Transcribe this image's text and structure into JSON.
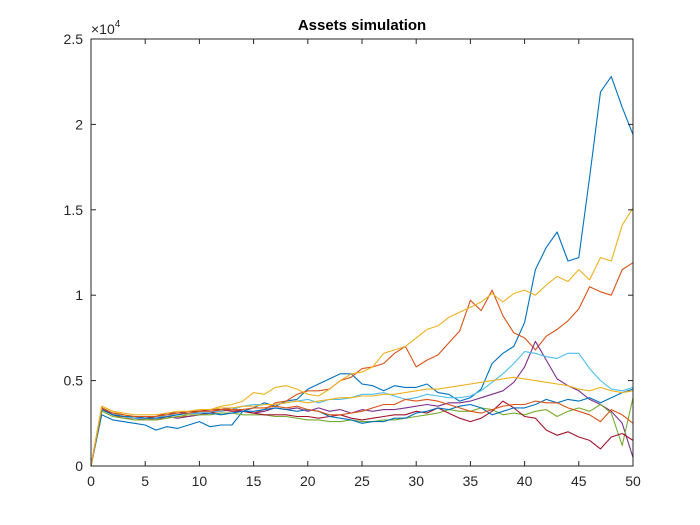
{
  "chart_data": {
    "type": "line",
    "title": "Assets simulation",
    "xlabel": "",
    "ylabel": "",
    "xlim": [
      0,
      50
    ],
    "ylim": [
      0,
      25000
    ],
    "y_multiplier_label": "×10",
    "y_multiplier_exponent": "4",
    "xticks": [
      0,
      5,
      10,
      15,
      20,
      25,
      30,
      35,
      40,
      45,
      50
    ],
    "xtick_labels": [
      "0",
      "5",
      "10",
      "15",
      "20",
      "25",
      "30",
      "35",
      "40",
      "45",
      "50"
    ],
    "yticks": [
      0,
      5000,
      10000,
      15000,
      20000,
      25000
    ],
    "ytick_labels": [
      "0",
      "0.5",
      "1",
      "1.5",
      "2",
      "2.5"
    ],
    "grid": false,
    "legend": "none",
    "x": [
      0,
      1,
      2,
      3,
      4,
      5,
      6,
      7,
      8,
      9,
      10,
      11,
      12,
      13,
      14,
      15,
      16,
      17,
      18,
      19,
      20,
      21,
      22,
      23,
      24,
      25,
      26,
      27,
      28,
      29,
      30,
      31,
      32,
      33,
      34,
      35,
      36,
      37,
      38,
      39,
      40,
      41,
      42,
      43,
      44,
      45,
      46,
      47,
      48,
      49,
      50
    ],
    "series": [
      {
        "color": "#0072BD",
        "values": [
          0,
          3000,
          2700,
          2600,
          2500,
          2400,
          2100,
          2300,
          2200,
          2400,
          2600,
          2300,
          2400,
          2400,
          3200,
          3400,
          3700,
          3500,
          3800,
          3900,
          4500,
          4800,
          5100,
          5400,
          5400,
          4800,
          4700,
          4400,
          4700,
          4600,
          4600,
          4800,
          4300,
          4200,
          3800,
          4000,
          4500,
          6000,
          6600,
          7000,
          8400,
          11500,
          12800,
          13700,
          12000,
          12200,
          16900,
          21900,
          22800,
          21000,
          19400
        ]
      },
      {
        "color": "#D95319",
        "values": [
          0,
          3400,
          3000,
          2800,
          2800,
          2800,
          2700,
          2800,
          2900,
          2900,
          3000,
          3100,
          3200,
          3300,
          3200,
          3100,
          3300,
          3700,
          3800,
          4200,
          4400,
          4400,
          4500,
          5000,
          5200,
          5700,
          5800,
          6000,
          6600,
          7000,
          5800,
          6200,
          6500,
          7200,
          7900,
          9700,
          9100,
          10300,
          8800,
          7800,
          7500,
          6800,
          7600,
          8000,
          8500,
          9200,
          10500,
          10200,
          10000,
          11500,
          11900
        ]
      },
      {
        "color": "#EDB120",
        "values": [
          0,
          3500,
          3200,
          3000,
          2800,
          2700,
          2700,
          2900,
          2800,
          3100,
          3300,
          3300,
          3500,
          3600,
          3800,
          4300,
          4200,
          4600,
          4700,
          4500,
          4200,
          4100,
          4500,
          5000,
          5400,
          5500,
          5800,
          6600,
          6800,
          7000,
          7500,
          8000,
          8200,
          8700,
          9000,
          9300,
          9600,
          10100,
          9600,
          10100,
          10300,
          10000,
          10600,
          11100,
          10800,
          11500,
          10900,
          12200,
          12000,
          14100,
          15100
        ]
      },
      {
        "color": "#7E2F8E",
        "values": [
          0,
          3300,
          3000,
          2900,
          2800,
          2700,
          2700,
          2900,
          2800,
          2900,
          3000,
          3100,
          3300,
          3400,
          3200,
          3100,
          3200,
          3400,
          3300,
          3400,
          3200,
          3400,
          3200,
          3300,
          3100,
          3300,
          3200,
          3300,
          3300,
          3400,
          3500,
          3600,
          3500,
          3700,
          3700,
          3800,
          4000,
          4200,
          4400,
          4900,
          5800,
          7300,
          6200,
          5100,
          4700,
          4400,
          3900,
          3600,
          3200,
          2500,
          500
        ]
      },
      {
        "color": "#77AC30",
        "values": [
          0,
          3200,
          2900,
          2800,
          2700,
          2700,
          2700,
          2800,
          2900,
          3000,
          3000,
          3000,
          3100,
          3100,
          3000,
          3000,
          3000,
          2900,
          2900,
          2800,
          2700,
          2700,
          2600,
          2600,
          2700,
          2600,
          2600,
          2700,
          2700,
          2800,
          2900,
          3000,
          3100,
          3300,
          3200,
          3200,
          3400,
          3300,
          3000,
          3100,
          3000,
          3200,
          3300,
          2900,
          3200,
          3400,
          3200,
          3600,
          3100,
          1200,
          4000
        ]
      },
      {
        "color": "#4DBEEE",
        "values": [
          0,
          3400,
          3100,
          2900,
          2800,
          2800,
          2800,
          3000,
          3000,
          3100,
          3200,
          3200,
          3200,
          3300,
          3500,
          3600,
          3600,
          3600,
          3700,
          3800,
          3900,
          3700,
          3900,
          3900,
          4000,
          4200,
          4200,
          4300,
          4100,
          3900,
          4000,
          4200,
          4100,
          4000,
          4000,
          4100,
          4400,
          4900,
          5400,
          6000,
          6700,
          6600,
          6400,
          6300,
          6600,
          6600,
          5700,
          5000,
          4500,
          4400,
          4600
        ]
      },
      {
        "color": "#A2142F",
        "values": [
          0,
          3400,
          3000,
          2900,
          2900,
          2800,
          2900,
          3100,
          3100,
          3200,
          3200,
          3300,
          3300,
          3200,
          3200,
          3100,
          3000,
          3000,
          3000,
          2900,
          2900,
          2800,
          2900,
          3000,
          2800,
          2700,
          2800,
          2900,
          3000,
          3000,
          3200,
          3100,
          3400,
          3100,
          2800,
          2600,
          2800,
          3200,
          3800,
          3400,
          2900,
          2800,
          2100,
          1800,
          2000,
          1700,
          1500,
          1000,
          1700,
          1900,
          1500
        ]
      },
      {
        "color": "#0072BD",
        "values": [
          0,
          3300,
          3000,
          2900,
          2900,
          2800,
          2800,
          2900,
          3000,
          3100,
          3100,
          3100,
          3000,
          3100,
          3200,
          3200,
          3300,
          3400,
          3300,
          3200,
          3300,
          3200,
          2900,
          2800,
          2700,
          2500,
          2600,
          2600,
          2800,
          2800,
          3100,
          3200,
          3400,
          3300,
          3500,
          3600,
          3400,
          3000,
          3200,
          3400,
          3400,
          3600,
          3900,
          3700,
          3900,
          3800,
          4000,
          3700,
          4000,
          4300,
          4500
        ]
      },
      {
        "color": "#D95319",
        "values": [
          0,
          3400,
          3100,
          3000,
          2900,
          2900,
          2900,
          3000,
          3100,
          3100,
          3200,
          3200,
          3300,
          3300,
          3300,
          3400,
          3400,
          3500,
          3400,
          3500,
          3300,
          3200,
          3000,
          3000,
          3100,
          3200,
          3400,
          3600,
          3600,
          3900,
          3800,
          3900,
          3800,
          3600,
          3400,
          3200,
          3100,
          3300,
          3500,
          3600,
          3600,
          3800,
          3700,
          3700,
          3400,
          3200,
          3000,
          2600,
          3300,
          3000,
          2500
        ]
      },
      {
        "color": "#EDB120",
        "values": [
          0,
          3500,
          3200,
          3100,
          3000,
          3000,
          3000,
          3100,
          3200,
          3200,
          3300,
          3300,
          3400,
          3400,
          3500,
          3500,
          3600,
          3600,
          3700,
          3800,
          3700,
          3800,
          3900,
          4000,
          4000,
          4100,
          4100,
          4200,
          4200,
          4300,
          4400,
          4500,
          4500,
          4600,
          4700,
          4800,
          4900,
          5000,
          5100,
          5200,
          5100,
          5000,
          4900,
          4800,
          4700,
          4500,
          4400,
          4600,
          4400,
          4300,
          4400
        ]
      },
      {
        "color": "#7E2F8E",
        "values": [
          0,
          0,
          0,
          0,
          0,
          0,
          0,
          0,
          0,
          0,
          0,
          0,
          0,
          0,
          0,
          0,
          0,
          0,
          0,
          0,
          0,
          0,
          0,
          0,
          0,
          0,
          0,
          0,
          0,
          0,
          0,
          0,
          0,
          0,
          0,
          0,
          0,
          0,
          0,
          0,
          0,
          0,
          0,
          0,
          0,
          0,
          0,
          0,
          0,
          0,
          0
        ]
      }
    ]
  }
}
